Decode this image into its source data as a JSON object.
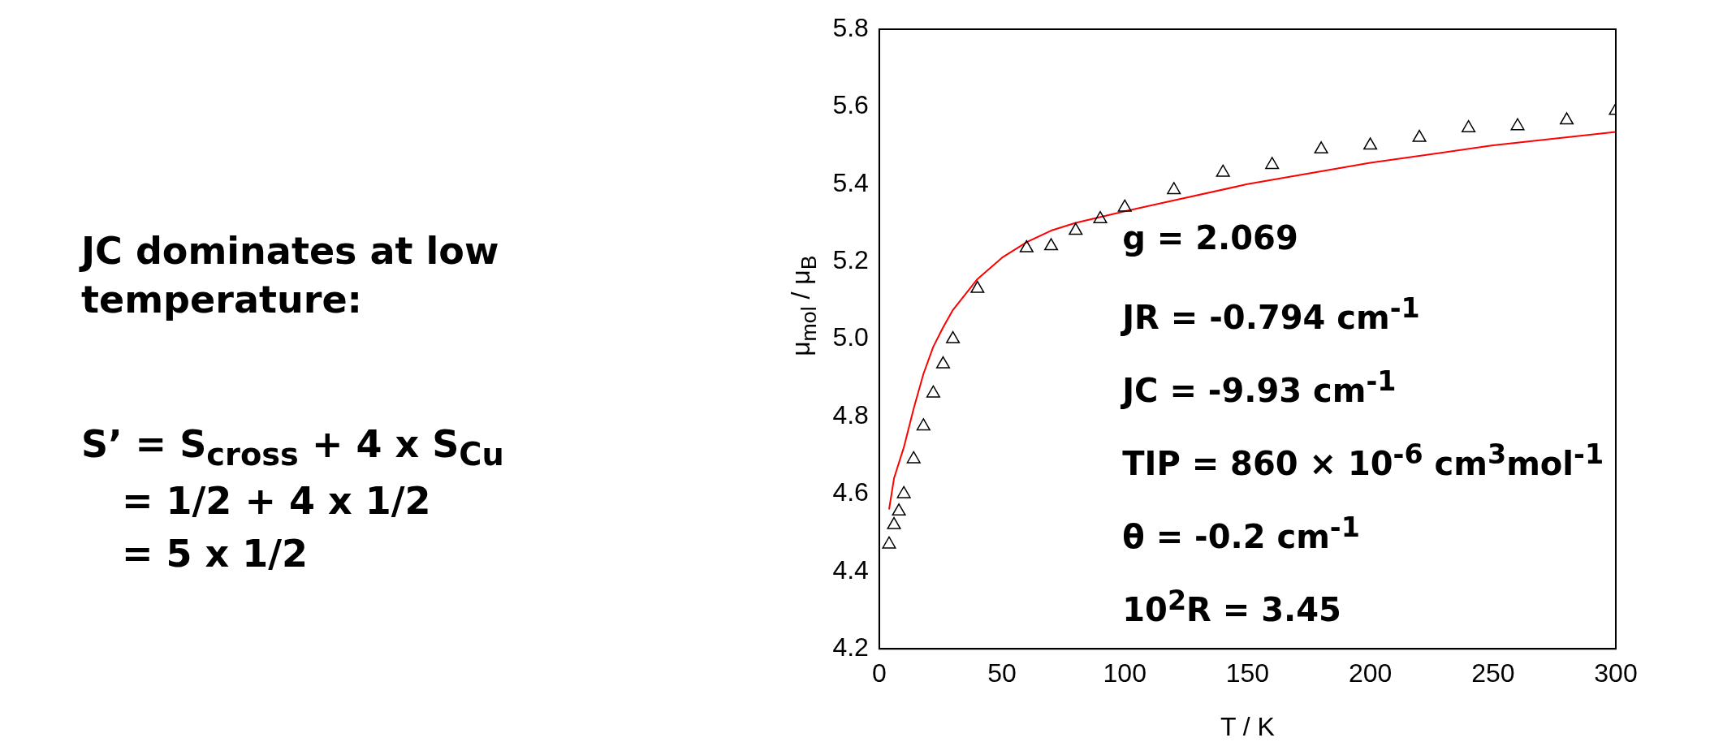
{
  "chart_data": {
    "type": "scatter",
    "xlabel": "T / K",
    "ylabel": "μ$_{mol}$ / μ$_{B}$",
    "xlim": [
      0,
      300
    ],
    "xticks": [
      0,
      50,
      100,
      150,
      200,
      250,
      300
    ],
    "ylim": [
      4.2,
      5.8
    ],
    "yticks": [
      4.2,
      4.4,
      4.6,
      4.8,
      {
        "value": 5,
        "label": "5.0"
      },
      5.2,
      5.4,
      5.6,
      5.8
    ],
    "grid": false,
    "legend": false,
    "series": [
      {
        "marker": "triangle",
        "color": "#000000",
        "x": [
          4,
          6,
          8,
          10,
          14,
          18,
          22,
          26,
          30,
          40,
          60,
          70,
          80,
          90,
          100,
          120,
          140,
          160,
          180,
          200,
          220,
          240,
          260,
          280,
          300
        ],
        "values": [
          4.47,
          4.52,
          4.555,
          4.6,
          4.69,
          4.775,
          4.86,
          4.935,
          5.0,
          5.13,
          5.235,
          5.24,
          5.28,
          5.31,
          5.34,
          5.385,
          5.43,
          5.45,
          5.49,
          5.5,
          5.52,
          5.545,
          5.55,
          5.565,
          5.59
        ]
      },
      {
        "type": "line",
        "marker": "none",
        "line_style": "solid",
        "color": "#ff0000",
        "x": [
          4,
          6,
          10,
          14,
          18,
          22,
          26,
          30,
          40,
          50,
          60,
          70,
          80,
          100,
          150,
          200,
          250,
          300
        ],
        "values": [
          4.56,
          4.64,
          4.72,
          4.82,
          4.91,
          4.98,
          5.03,
          5.075,
          5.155,
          5.21,
          5.25,
          5.28,
          5.3,
          5.33,
          5.4,
          5.455,
          5.5,
          5.535
        ]
      }
    ],
    "annotations": [
      "g = 2.069",
      "JR = -0.794  cm$^{-1}$",
      "JC = -9.93 cm$^{-1}$",
      "TIP = 860 × 10$^{-6}$ cm$^{3}$mol$^{-1}$",
      "θ = -0.2 cm$^{-1}$",
      "10$^{2}$R = 3.45",
      "JC dominates at low temperature:",
      "S’ = S$_{cross}$ + 4 x S$_{Cu}$",
      "= 1/2 + 4 x 1/2",
      "= 5 x 1/2"
    ]
  }
}
